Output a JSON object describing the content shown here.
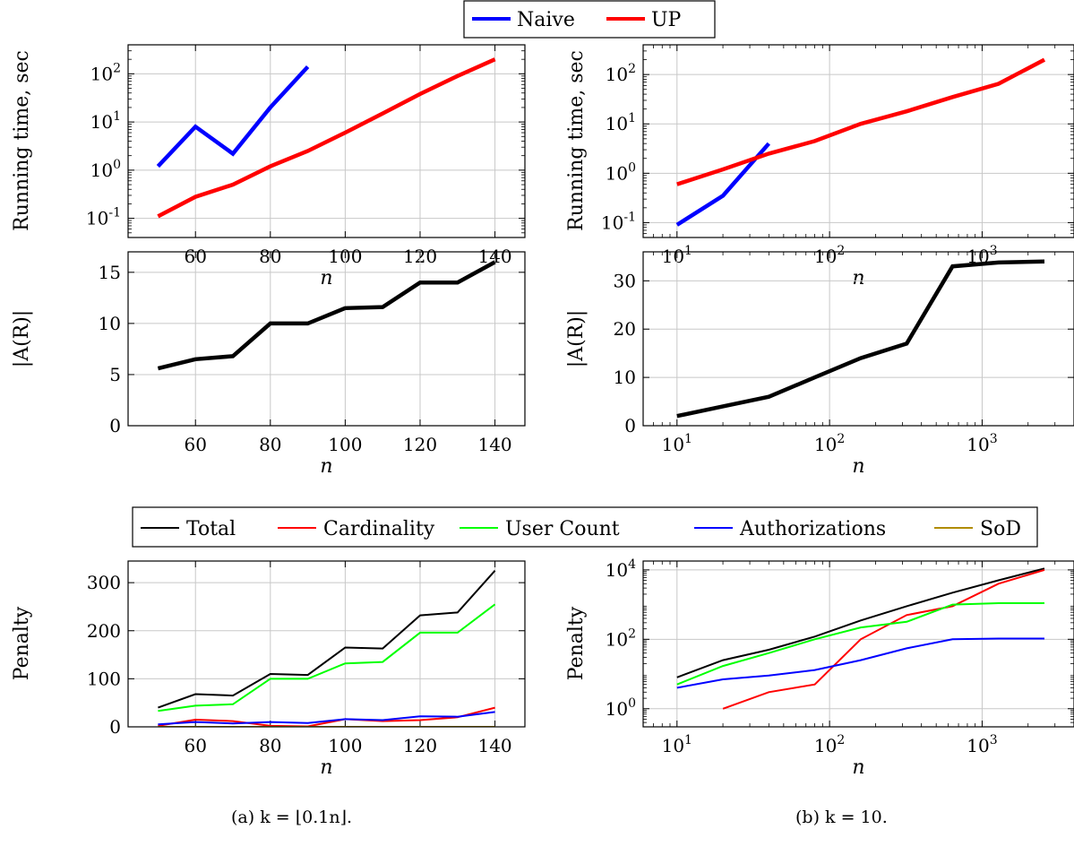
{
  "legend_top": {
    "items": [
      {
        "name": "Naive",
        "color": "#0000ff"
      },
      {
        "name": "UP",
        "color": "#ff0000"
      }
    ]
  },
  "legend_bottom": {
    "items": [
      {
        "name": "Total",
        "color": "#000000"
      },
      {
        "name": "Cardinality",
        "color": "#ff0000"
      },
      {
        "name": "User Count",
        "color": "#00ff00"
      },
      {
        "name": "Authorizations",
        "color": "#0000ff"
      },
      {
        "name": "SoD",
        "color": "#b08c00"
      }
    ]
  },
  "captions": {
    "a": "(a) k = ⌊0.1n⌋.",
    "b": "(b) k = 10."
  },
  "chart_data": [
    {
      "id": "a-time",
      "type": "line",
      "xlabel": "n",
      "ylabel": "Running time, sec",
      "xscale": "linear",
      "yscale": "log",
      "xlim": [
        42,
        148
      ],
      "ylim": [
        0.04,
        400
      ],
      "xticks": [
        60,
        80,
        100,
        120,
        140
      ],
      "yticks": [
        0.1,
        1,
        10,
        100
      ],
      "grid": true,
      "series": [
        {
          "name": "Naive",
          "color": "#0000ff",
          "x": [
            50,
            60,
            70,
            80,
            90
          ],
          "y": [
            1.2,
            8,
            2.2,
            20,
            140
          ]
        },
        {
          "name": "UP",
          "color": "#ff0000",
          "x": [
            50,
            60,
            70,
            80,
            90,
            100,
            110,
            120,
            130,
            140
          ],
          "y": [
            0.11,
            0.28,
            0.5,
            1.2,
            2.5,
            6,
            15,
            38,
            90,
            200
          ]
        }
      ]
    },
    {
      "id": "b-time",
      "type": "line",
      "xlabel": "n",
      "ylabel": "Running time, sec",
      "xscale": "log",
      "yscale": "log",
      "xlim": [
        6,
        4000
      ],
      "ylim": [
        0.05,
        400
      ],
      "xticks": [
        10,
        100,
        1000
      ],
      "yticks": [
        0.1,
        1,
        10,
        100
      ],
      "grid": true,
      "series": [
        {
          "name": "Naive",
          "color": "#0000ff",
          "x": [
            10,
            20,
            40
          ],
          "y": [
            0.09,
            0.35,
            4
          ]
        },
        {
          "name": "UP",
          "color": "#ff0000",
          "x": [
            10,
            20,
            40,
            80,
            160,
            320,
            640,
            1280,
            2560
          ],
          "y": [
            0.6,
            1.2,
            2.5,
            4.5,
            10,
            18,
            35,
            65,
            200
          ]
        }
      ]
    },
    {
      "id": "a-ar",
      "type": "line",
      "xlabel": "n",
      "ylabel": "|A(R)|",
      "xscale": "linear",
      "yscale": "linear",
      "xlim": [
        42,
        148
      ],
      "ylim": [
        0,
        17
      ],
      "xticks": [
        60,
        80,
        100,
        120,
        140
      ],
      "yticks": [
        0,
        5,
        10,
        15
      ],
      "grid": true,
      "series": [
        {
          "name": "",
          "color": "#000000",
          "x": [
            50,
            60,
            70,
            80,
            90,
            100,
            110,
            120,
            130,
            140
          ],
          "y": [
            5.6,
            6.5,
            6.8,
            10,
            10,
            11.5,
            11.6,
            14,
            14,
            16
          ]
        }
      ]
    },
    {
      "id": "b-ar",
      "type": "line",
      "xlabel": "n",
      "ylabel": "|A(R)|",
      "xscale": "log",
      "yscale": "linear",
      "xlim": [
        6,
        4000
      ],
      "ylim": [
        0,
        36
      ],
      "xticks": [
        10,
        100,
        1000
      ],
      "yticks": [
        0,
        10,
        20,
        30
      ],
      "grid": true,
      "series": [
        {
          "name": "",
          "color": "#000000",
          "x": [
            10,
            20,
            40,
            80,
            160,
            320,
            640,
            1280,
            2560
          ],
          "y": [
            2,
            4,
            6,
            10,
            14,
            17,
            33,
            33.8,
            34
          ]
        }
      ]
    },
    {
      "id": "a-pen",
      "type": "line",
      "xlabel": "n",
      "ylabel": "Penalty",
      "xscale": "linear",
      "yscale": "linear",
      "xlim": [
        42,
        148
      ],
      "ylim": [
        0,
        345
      ],
      "xticks": [
        60,
        80,
        100,
        120,
        140
      ],
      "yticks": [
        0,
        100,
        200,
        300
      ],
      "grid": true,
      "series": [
        {
          "name": "Total",
          "color": "#000000",
          "x": [
            50,
            60,
            70,
            80,
            90,
            100,
            110,
            120,
            130,
            140
          ],
          "y": [
            40,
            68,
            65,
            110,
            108,
            165,
            163,
            232,
            238,
            325
          ]
        },
        {
          "name": "Cardinality",
          "color": "#ff0000",
          "x": [
            50,
            60,
            70,
            80,
            90,
            100,
            110,
            120,
            130,
            140
          ],
          "y": [
            2,
            15,
            12,
            2,
            1,
            16,
            12,
            14,
            20,
            40
          ]
        },
        {
          "name": "User Count",
          "color": "#00ff00",
          "x": [
            50,
            60,
            70,
            80,
            90,
            100,
            110,
            120,
            130,
            140
          ],
          "y": [
            33,
            44,
            47,
            100,
            100,
            132,
            135,
            196,
            196,
            255
          ]
        },
        {
          "name": "Authorizations",
          "color": "#0000ff",
          "x": [
            50,
            60,
            70,
            80,
            90,
            100,
            110,
            120,
            130,
            140
          ],
          "y": [
            5,
            10,
            7,
            10,
            8,
            16,
            14,
            22,
            21,
            31
          ]
        },
        {
          "name": "SoD",
          "color": "#b08c00",
          "x": [
            50,
            60,
            70,
            80,
            90,
            100,
            110,
            120,
            130,
            140
          ],
          "y": [
            0,
            0,
            0,
            0,
            0,
            0,
            0,
            0,
            0,
            0
          ]
        }
      ]
    },
    {
      "id": "b-pen",
      "type": "line",
      "xlabel": "n",
      "ylabel": "Penalty",
      "xscale": "log",
      "yscale": "log",
      "xlim": [
        6,
        4000
      ],
      "ylim": [
        0.3,
        18000
      ],
      "xticks": [
        10,
        100,
        1000
      ],
      "yticks": [
        1,
        100,
        10000
      ],
      "grid": true,
      "series": [
        {
          "name": "Total",
          "color": "#000000",
          "x": [
            10,
            20,
            40,
            80,
            160,
            320,
            640,
            1280,
            2560
          ],
          "y": [
            8,
            25,
            50,
            120,
            350,
            900,
            2200,
            5000,
            11000
          ]
        },
        {
          "name": "Cardinality",
          "color": "#ff0000",
          "x": [
            20,
            40,
            80,
            160,
            320,
            640,
            1280,
            2560
          ],
          "y": [
            1,
            3,
            5,
            100,
            500,
            900,
            4000,
            10000
          ]
        },
        {
          "name": "User Count",
          "color": "#00ff00",
          "x": [
            10,
            20,
            40,
            80,
            160,
            320,
            640,
            1280,
            2560
          ],
          "y": [
            5,
            17,
            40,
            100,
            220,
            320,
            1000,
            1100,
            1100
          ]
        },
        {
          "name": "Authorizations",
          "color": "#0000ff",
          "x": [
            10,
            20,
            40,
            80,
            160,
            320,
            640,
            1280,
            2560
          ],
          "y": [
            4,
            7,
            9,
            13,
            25,
            55,
            100,
            105,
            105
          ]
        }
      ]
    }
  ]
}
